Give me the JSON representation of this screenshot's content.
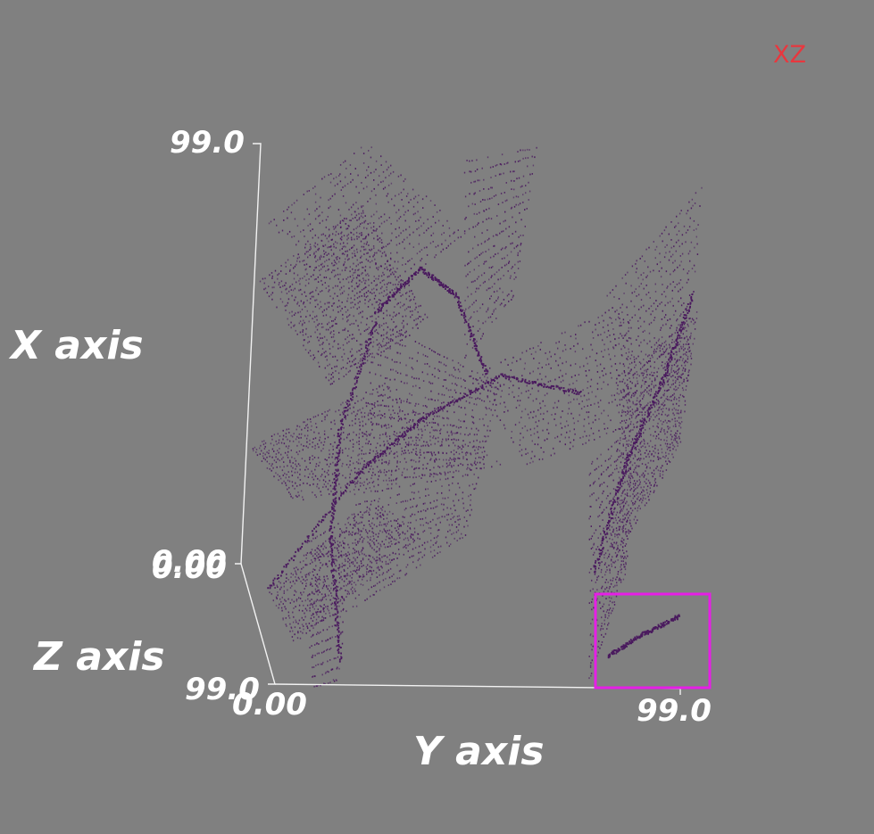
{
  "view_tag": "XZ",
  "chart_data": {
    "type": "scatter",
    "render": "3d-point-cloud",
    "point_color": "#4a1a5e",
    "axes": {
      "x": {
        "label": "X axis",
        "range": [
          0,
          99
        ],
        "ticks": [
          "0.00",
          "99.0"
        ]
      },
      "y": {
        "label": "Y axis",
        "range": [
          0,
          99
        ],
        "ticks": [
          "0.00",
          "99.0"
        ]
      },
      "z": {
        "label": "Z axis",
        "range": [
          0,
          99
        ],
        "ticks": [
          "0.00",
          "99.0"
        ]
      }
    },
    "selection_box_color": "#e61ee6"
  }
}
